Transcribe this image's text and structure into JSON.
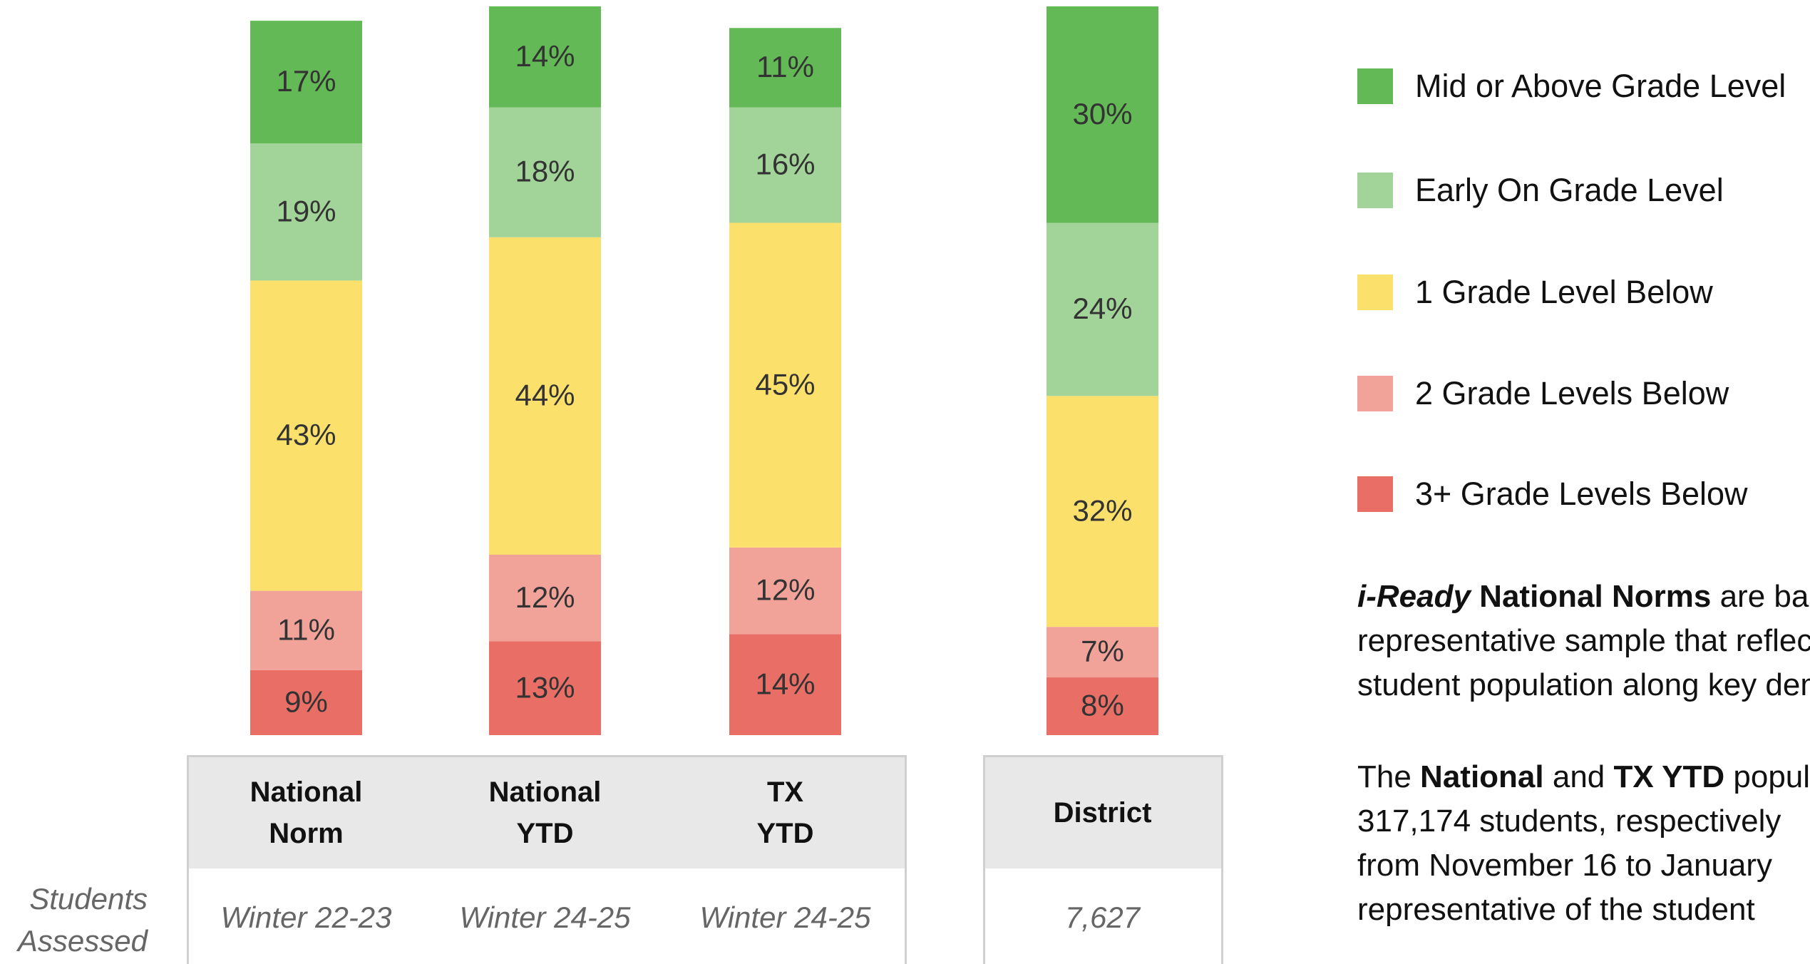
{
  "chart_data": {
    "type": "stacked_bar",
    "categories": [
      "National\nNorm",
      "National\nYTD",
      "TX\nYTD",
      "District"
    ],
    "series": [
      {
        "name": "Mid or Above Grade Level",
        "color": "#63b955",
        "values": [
          17,
          14,
          11,
          30
        ],
        "value_labels": [
          "17%",
          "14%",
          "11%",
          "30%"
        ]
      },
      {
        "name": "Early On Grade Level",
        "color": "#a2d398",
        "values": [
          19,
          18,
          16,
          24
        ],
        "value_labels": [
          "19%",
          "18%",
          "16%",
          "24%"
        ]
      },
      {
        "name": "1 Grade Level Below",
        "color": "#fbe06c",
        "values": [
          43,
          44,
          45,
          32
        ],
        "value_labels": [
          "43%",
          "44%",
          "45%",
          "32%"
        ]
      },
      {
        "name": "2 Grade Levels Below",
        "color": "#f1a39a",
        "values": [
          11,
          12,
          12,
          7
        ],
        "value_labels": [
          "11%",
          "12%",
          "12%",
          "7%"
        ]
      },
      {
        "name": "3+ Grade Levels Below",
        "color": "#e86e66",
        "values": [
          9,
          13,
          14,
          8
        ],
        "value_labels": [
          "9%",
          "13%",
          "14%",
          "8%"
        ]
      }
    ],
    "row_label": "Students\nAssessed",
    "row_values": [
      "Winter 22-23",
      "Winter 24-25",
      "Winter 24-25",
      "7,627"
    ]
  },
  "notes": [
    {
      "runs": [
        "i-Ready",
        " National Norms",
        " are based on a"
      ],
      "lines": [
        "representative sample that reflects the",
        "student population along key demographics"
      ]
    },
    {
      "runs": [
        "The ",
        "National",
        " and ",
        "TX YTD",
        " populations"
      ],
      "lines": [
        "317,174 students, respectively",
        "from November 16 to January",
        "representative of the student"
      ]
    }
  ]
}
